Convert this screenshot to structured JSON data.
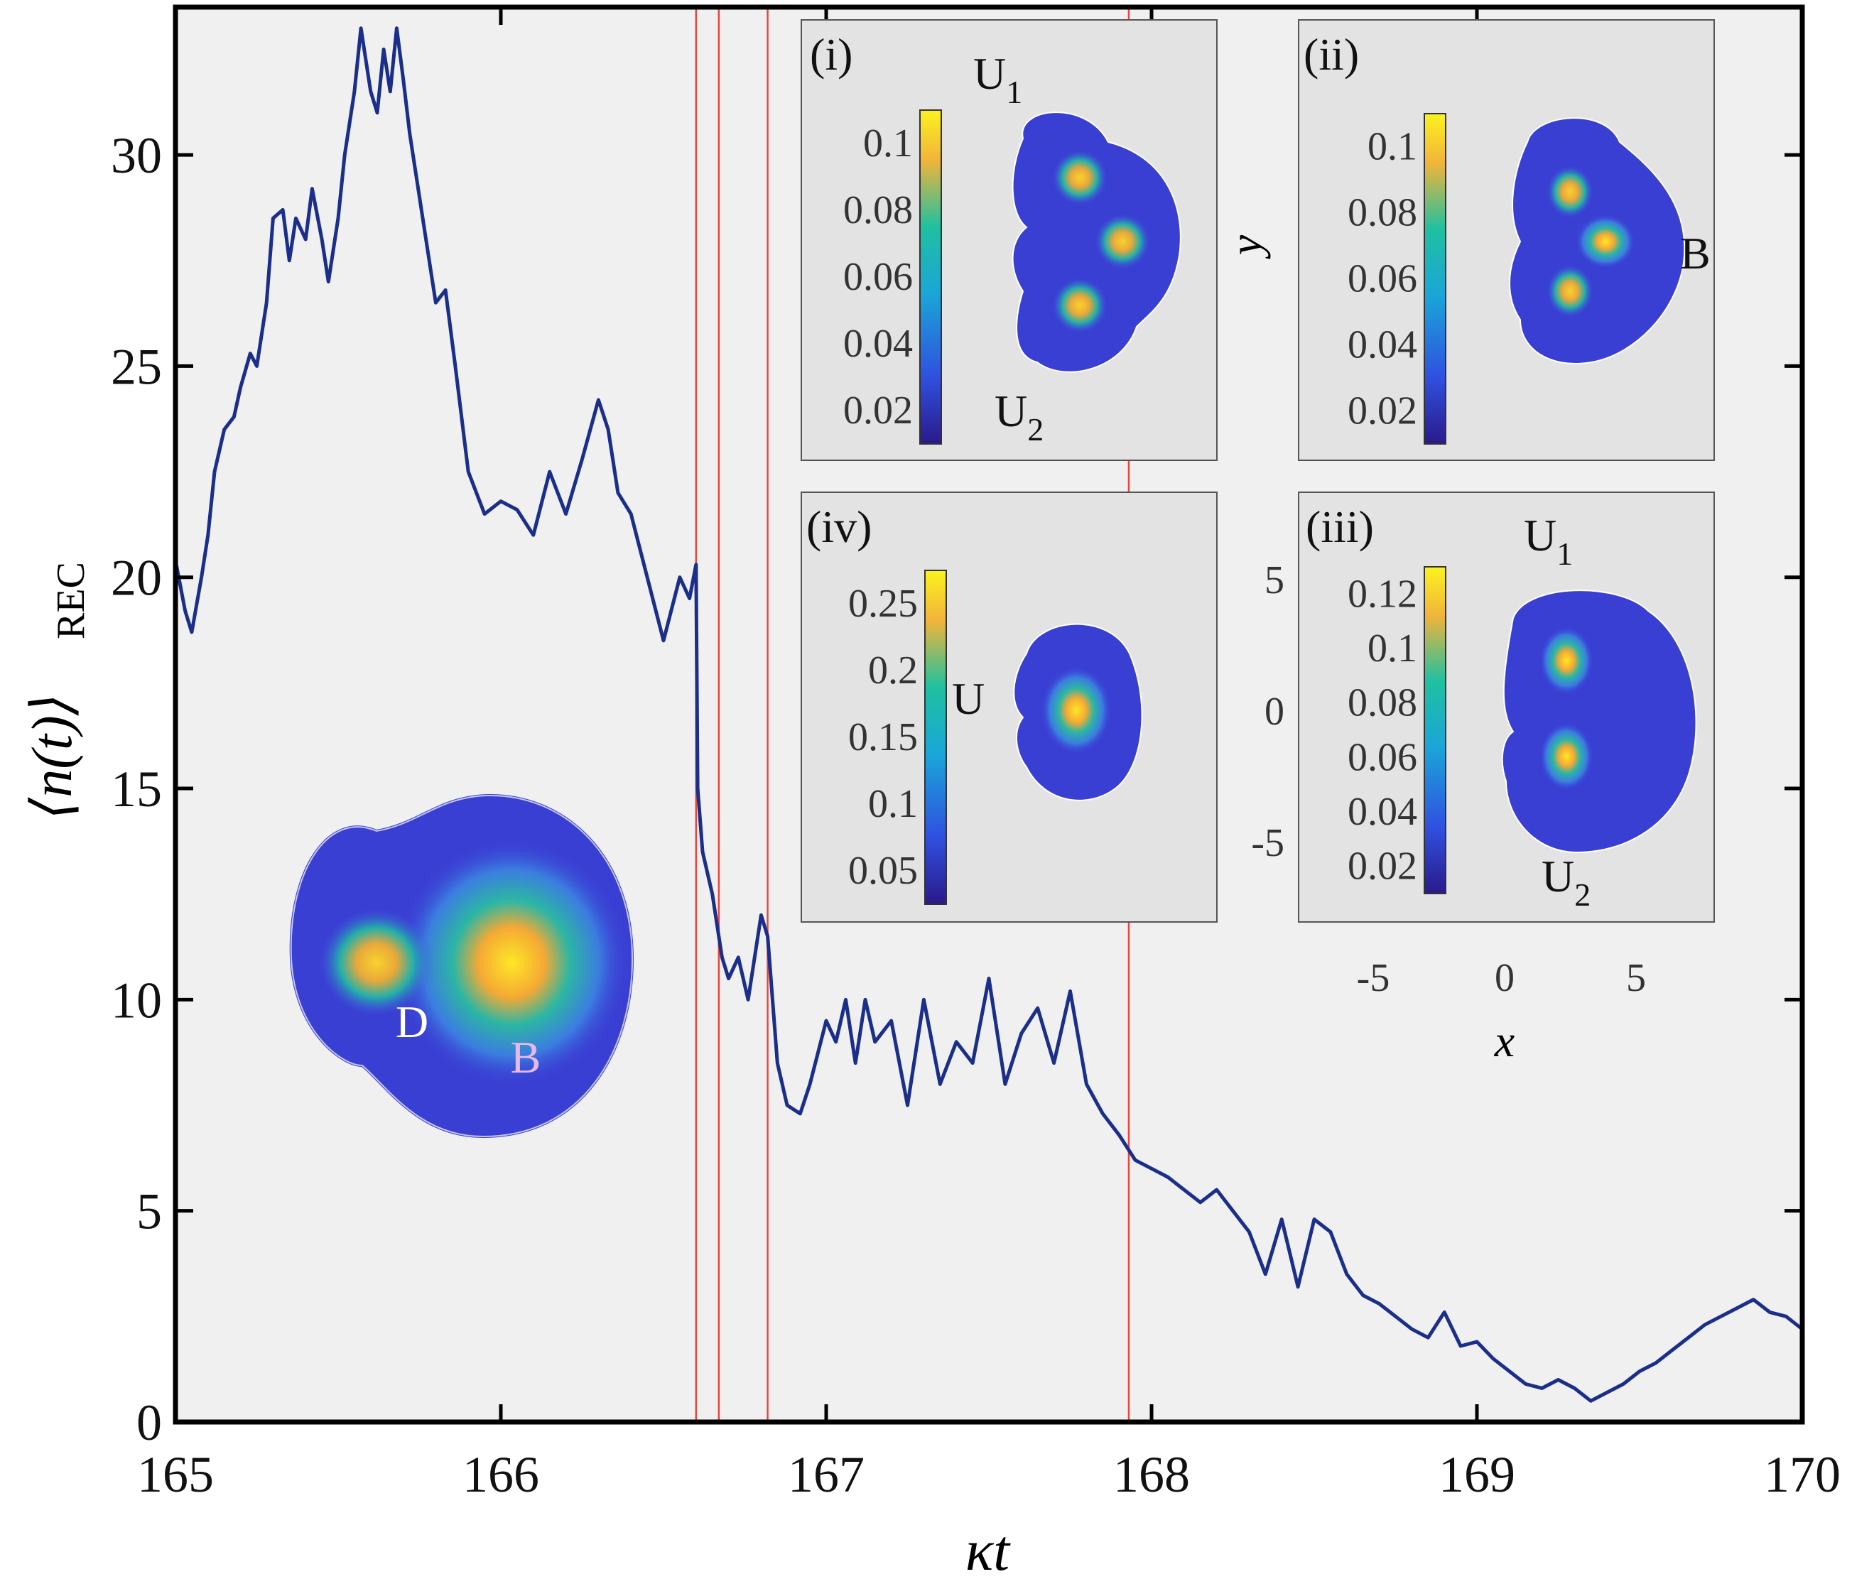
{
  "chart_data": {
    "type": "line",
    "title": "",
    "xlabel": "κt",
    "ylabel": "⟨n(t)⟩",
    "ylabel_sub": "REC",
    "xlim": [
      165,
      170
    ],
    "ylim": [
      0,
      33.5
    ],
    "xticks": [
      165,
      166,
      167,
      168,
      169,
      170
    ],
    "xtick_labels": [
      "165",
      "166",
      "167",
      "168",
      "169",
      "170"
    ],
    "yticks": [
      0,
      5,
      10,
      15,
      20,
      25,
      30
    ],
    "ytick_labels": [
      "0",
      "5",
      "10",
      "15",
      "20",
      "25",
      "30"
    ],
    "grid": false,
    "vlines": [
      166.6,
      166.67,
      166.82,
      167.93
    ],
    "vline_color": "#e8453c",
    "line_color": "#1a2e8a",
    "series": [
      {
        "name": "n_REC",
        "x": [
          165.0,
          165.03,
          165.05,
          165.08,
          165.1,
          165.12,
          165.15,
          165.18,
          165.2,
          165.23,
          165.25,
          165.28,
          165.3,
          165.33,
          165.35,
          165.37,
          165.4,
          165.42,
          165.45,
          165.47,
          165.5,
          165.52,
          165.55,
          165.57,
          165.6,
          165.62,
          165.64,
          165.66,
          165.68,
          165.7,
          165.72,
          165.75,
          165.78,
          165.8,
          165.83,
          165.86,
          165.9,
          165.95,
          166.0,
          166.05,
          166.1,
          166.15,
          166.2,
          166.25,
          166.3,
          166.33,
          166.36,
          166.4,
          166.45,
          166.5,
          166.55,
          166.58,
          166.6,
          166.605,
          166.62,
          166.65,
          166.68,
          166.7,
          166.73,
          166.76,
          166.8,
          166.82,
          166.85,
          166.88,
          166.92,
          166.95,
          167.0,
          167.03,
          167.06,
          167.09,
          167.12,
          167.15,
          167.2,
          167.25,
          167.3,
          167.35,
          167.4,
          167.45,
          167.5,
          167.55,
          167.6,
          167.65,
          167.7,
          167.75,
          167.8,
          167.85,
          167.9,
          167.95,
          168.0,
          168.05,
          168.1,
          168.15,
          168.2,
          168.25,
          168.3,
          168.35,
          168.4,
          168.45,
          168.5,
          168.55,
          168.6,
          168.65,
          168.7,
          168.75,
          168.8,
          168.85,
          168.9,
          168.95,
          169.0,
          169.05,
          169.1,
          169.15,
          169.2,
          169.25,
          169.3,
          169.35,
          169.4,
          169.45,
          169.5,
          169.55,
          169.6,
          169.65,
          169.7,
          169.75,
          169.8,
          169.85,
          169.9,
          169.95,
          170.0
        ],
        "y": [
          20.4,
          19.2,
          18.7,
          20.0,
          21.0,
          22.5,
          23.5,
          23.8,
          24.5,
          25.3,
          25.0,
          26.5,
          28.5,
          28.7,
          27.5,
          28.5,
          28.0,
          29.2,
          28.0,
          27.0,
          28.5,
          30.0,
          31.5,
          33.0,
          31.5,
          31.0,
          32.5,
          31.5,
          33.0,
          31.8,
          30.5,
          29.0,
          27.5,
          26.5,
          26.8,
          25.0,
          22.5,
          21.5,
          21.8,
          21.6,
          21.0,
          22.5,
          21.5,
          22.8,
          24.2,
          23.5,
          22.0,
          21.5,
          20.0,
          18.5,
          20.0,
          19.5,
          20.3,
          15.0,
          13.5,
          12.5,
          11.0,
          10.5,
          11.0,
          10.0,
          12.0,
          11.5,
          8.5,
          7.5,
          7.3,
          8.0,
          9.5,
          9.0,
          10.0,
          8.5,
          10.0,
          9.0,
          9.5,
          7.5,
          10.0,
          8.0,
          9.0,
          8.5,
          10.5,
          8.0,
          9.2,
          9.8,
          8.5,
          10.2,
          8.0,
          7.3,
          6.8,
          6.2,
          6.0,
          5.8,
          5.5,
          5.2,
          5.5,
          5.0,
          4.5,
          3.5,
          4.8,
          3.2,
          4.8,
          4.5,
          3.5,
          3.0,
          2.8,
          2.5,
          2.2,
          2.0,
          2.6,
          1.8,
          1.9,
          1.5,
          1.2,
          0.9,
          0.8,
          1.0,
          0.8,
          0.5,
          0.7,
          0.9,
          1.2,
          1.4,
          1.7,
          2.0,
          2.3,
          2.5,
          2.7,
          2.9,
          2.6,
          2.5,
          2.2
        ]
      }
    ]
  },
  "annotations": {
    "main_inset": {
      "D": "D",
      "B": "B"
    },
    "inset_i": {
      "label": "(i)",
      "U1": "U",
      "U1_sub": "1",
      "U2": "U",
      "U2_sub": "2",
      "colorbar_ticks": [
        "0.1",
        "0.08",
        "0.06",
        "0.04",
        "0.02"
      ]
    },
    "inset_ii": {
      "label": "(ii)",
      "B": "B",
      "colorbar_ticks": [
        "0.1",
        "0.08",
        "0.06",
        "0.04",
        "0.02"
      ]
    },
    "inset_iii": {
      "label": "(iii)",
      "U1": "U",
      "U1_sub": "1",
      "U2": "U",
      "U2_sub": "2",
      "colorbar_ticks": [
        "0.12",
        "0.1",
        "0.08",
        "0.06",
        "0.04",
        "0.02"
      ]
    },
    "inset_iv": {
      "label": "(iv)",
      "U": "U",
      "colorbar_ticks": [
        "0.25",
        "0.2",
        "0.15",
        "0.1",
        "0.05"
      ]
    },
    "inset_axes": {
      "xlabel": "x",
      "ylabel": "y",
      "xticks": [
        "-5",
        "0",
        "5"
      ],
      "yticks": [
        "5",
        "0",
        "-5"
      ]
    }
  }
}
